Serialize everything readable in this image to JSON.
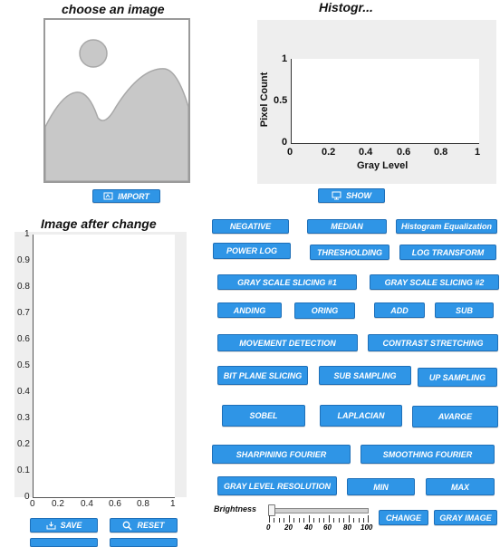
{
  "left_top": {
    "title": "choose an image",
    "import_label": "IMPORT"
  },
  "right_top": {
    "title": "Histogr...",
    "ylabel": "Pixel Count",
    "xlabel": "Gray Level",
    "yticks": [
      "1",
      "0.5",
      "0"
    ],
    "xticks": [
      "0",
      "0.2",
      "0.4",
      "0.6",
      "0.8",
      "1"
    ],
    "show_label": "SHOW"
  },
  "left_bottom": {
    "title": "Image after change",
    "yticks": [
      "1",
      "0.9",
      "0.8",
      "0.7",
      "0.6",
      "0.5",
      "0.4",
      "0.3",
      "0.2",
      "0.1",
      "0"
    ],
    "xticks": [
      "0",
      "0.2",
      "0.4",
      "0.6",
      "0.8",
      "1"
    ],
    "save_label": "SAVE",
    "reset_label": "RESET"
  },
  "ops": {
    "negative": "NEGATIVE",
    "median": "MEDIAN",
    "hist_eq": "Histogram Equalization",
    "power_log": "POWER LOG",
    "thresholding": "THRESHOLDING",
    "log_transform": "LOG TRANSFORM",
    "gray_slicing_1": "GRAY SCALE SLICING #1",
    "gray_slicing_2": "GRAY SCALE SLICING #2",
    "anding": "ANDING",
    "oring": "ORING",
    "add": "ADD",
    "sub": "SUB",
    "movement": "MOVEMENT DETECTION",
    "contrast": "CONTRAST STRETCHING",
    "bit_plane": "BIT PLANE SLICING",
    "sub_sampling": "SUB SAMPLING",
    "up_sampling": "UP SAMPLING",
    "sobel": "SOBEL",
    "laplacian": "LAPLACIAN",
    "avarge": "AVARGE",
    "sharpening": "SHARPINING FOURIER",
    "smoothing": "SMOOTHING FOURIER",
    "gray_level_res": "GRAY LEVEL RESOLUTION",
    "min": "MIN",
    "max": "MAX"
  },
  "brightness": {
    "label": "Brightness",
    "ticks": [
      "0",
      "20",
      "40",
      "60",
      "80",
      "100"
    ],
    "value": 0,
    "change_label": "CHANGE",
    "gray_image_label": "GRAY IMAGE"
  },
  "colors": {
    "button": "#2f95e6",
    "panel": "#eeeeee",
    "placeholder": "#c8c8c8"
  }
}
